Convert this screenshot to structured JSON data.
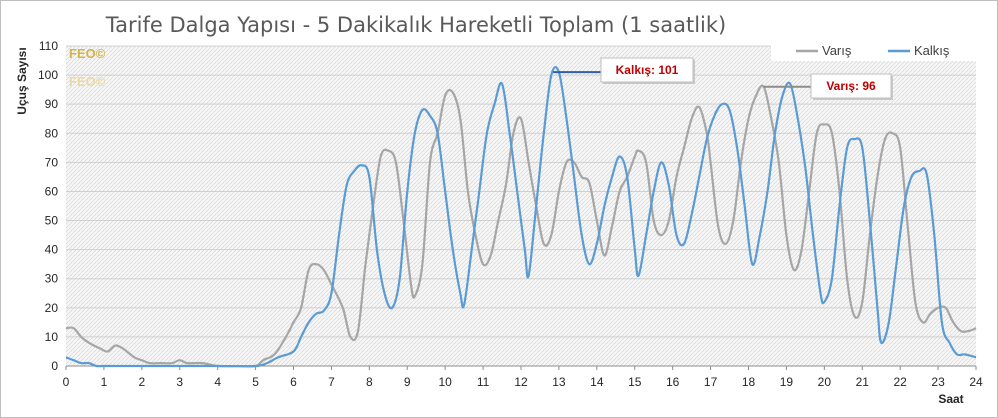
{
  "chart_data": {
    "type": "line",
    "title": "Tarife Dalga Yapısı - 5 Dakikalık Hareketli Toplam (1 saatlik)",
    "xlabel": "Saat",
    "ylabel": "Uçuş Sayısı",
    "xlim": [
      0,
      24
    ],
    "ylim": [
      0,
      110
    ],
    "x_ticks": [
      "0",
      "1",
      "2",
      "3",
      "4",
      "5",
      "6",
      "7",
      "8",
      "9",
      "10",
      "11",
      "12",
      "13",
      "14",
      "15",
      "16",
      "17",
      "18",
      "19",
      "20",
      "21",
      "22",
      "23",
      "24"
    ],
    "y_ticks": [
      "0",
      "10",
      "20",
      "30",
      "40",
      "50",
      "60",
      "70",
      "80",
      "90",
      "100",
      "110"
    ],
    "grid": "horizontal",
    "legend_position": "top-right",
    "watermark": [
      "FEO©",
      "FEO©"
    ],
    "series": [
      {
        "name": "Varış",
        "color": "#a6a6a6",
        "points": [
          [
            0,
            13
          ],
          [
            0.2,
            13
          ],
          [
            0.4,
            10
          ],
          [
            0.6,
            8
          ],
          [
            0.9,
            6
          ],
          [
            1.1,
            5
          ],
          [
            1.3,
            7
          ],
          [
            1.5,
            6
          ],
          [
            1.8,
            3
          ],
          [
            2.0,
            2
          ],
          [
            2.2,
            1
          ],
          [
            2.5,
            1
          ],
          [
            2.8,
            1
          ],
          [
            3.0,
            2
          ],
          [
            3.2,
            1
          ],
          [
            3.6,
            1
          ],
          [
            4.0,
            0
          ],
          [
            4.5,
            0
          ],
          [
            5.0,
            0
          ],
          [
            5.2,
            2
          ],
          [
            5.5,
            4
          ],
          [
            5.8,
            10
          ],
          [
            6.0,
            15
          ],
          [
            6.2,
            20
          ],
          [
            6.4,
            33
          ],
          [
            6.6,
            35
          ],
          [
            6.8,
            33
          ],
          [
            7.0,
            28
          ],
          [
            7.3,
            20
          ],
          [
            7.5,
            10
          ],
          [
            7.7,
            12
          ],
          [
            7.9,
            35
          ],
          [
            8.1,
            55
          ],
          [
            8.3,
            72
          ],
          [
            8.5,
            74
          ],
          [
            8.7,
            70
          ],
          [
            8.9,
            50
          ],
          [
            9.1,
            28
          ],
          [
            9.2,
            24
          ],
          [
            9.4,
            35
          ],
          [
            9.6,
            70
          ],
          [
            9.8,
            80
          ],
          [
            10.0,
            93
          ],
          [
            10.2,
            94
          ],
          [
            10.4,
            85
          ],
          [
            10.6,
            60
          ],
          [
            10.8,
            45
          ],
          [
            11.0,
            35
          ],
          [
            11.2,
            38
          ],
          [
            11.4,
            50
          ],
          [
            11.6,
            62
          ],
          [
            11.8,
            80
          ],
          [
            12.0,
            85
          ],
          [
            12.2,
            70
          ],
          [
            12.4,
            55
          ],
          [
            12.6,
            42
          ],
          [
            12.8,
            45
          ],
          [
            13.0,
            60
          ],
          [
            13.2,
            70
          ],
          [
            13.4,
            70
          ],
          [
            13.6,
            65
          ],
          [
            13.8,
            63
          ],
          [
            14.0,
            50
          ],
          [
            14.2,
            38
          ],
          [
            14.4,
            48
          ],
          [
            14.6,
            60
          ],
          [
            14.8,
            65
          ],
          [
            15.0,
            72
          ],
          [
            15.1,
            74
          ],
          [
            15.3,
            70
          ],
          [
            15.5,
            50
          ],
          [
            15.7,
            45
          ],
          [
            15.9,
            50
          ],
          [
            16.1,
            65
          ],
          [
            16.3,
            75
          ],
          [
            16.5,
            85
          ],
          [
            16.7,
            89
          ],
          [
            16.9,
            80
          ],
          [
            17.0,
            70
          ],
          [
            17.2,
            48
          ],
          [
            17.4,
            42
          ],
          [
            17.6,
            50
          ],
          [
            17.8,
            70
          ],
          [
            18.0,
            85
          ],
          [
            18.2,
            93
          ],
          [
            18.4,
            96
          ],
          [
            18.6,
            85
          ],
          [
            18.8,
            70
          ],
          [
            19.0,
            45
          ],
          [
            19.2,
            33
          ],
          [
            19.4,
            40
          ],
          [
            19.6,
            60
          ],
          [
            19.8,
            80
          ],
          [
            20.0,
            83
          ],
          [
            20.2,
            80
          ],
          [
            20.4,
            60
          ],
          [
            20.6,
            30
          ],
          [
            20.8,
            17
          ],
          [
            21.0,
            22
          ],
          [
            21.2,
            45
          ],
          [
            21.4,
            65
          ],
          [
            21.6,
            78
          ],
          [
            21.8,
            80
          ],
          [
            22.0,
            75
          ],
          [
            22.2,
            48
          ],
          [
            22.4,
            22
          ],
          [
            22.6,
            15
          ],
          [
            22.8,
            18
          ],
          [
            23.0,
            20
          ],
          [
            23.2,
            20
          ],
          [
            23.4,
            15
          ],
          [
            23.6,
            12
          ],
          [
            23.8,
            12
          ],
          [
            24,
            13
          ]
        ]
      },
      {
        "name": "Kalkış",
        "color": "#5b9bd5",
        "points": [
          [
            0,
            3
          ],
          [
            0.2,
            2
          ],
          [
            0.4,
            1
          ],
          [
            0.6,
            1
          ],
          [
            0.8,
            0
          ],
          [
            1.0,
            0
          ],
          [
            2.0,
            0
          ],
          [
            3.0,
            0
          ],
          [
            4.0,
            0
          ],
          [
            5.0,
            0
          ],
          [
            5.3,
            1
          ],
          [
            5.6,
            3
          ],
          [
            6.0,
            5
          ],
          [
            6.2,
            10
          ],
          [
            6.4,
            15
          ],
          [
            6.6,
            18
          ],
          [
            6.8,
            19
          ],
          [
            7.0,
            25
          ],
          [
            7.2,
            45
          ],
          [
            7.4,
            62
          ],
          [
            7.6,
            67
          ],
          [
            7.8,
            69
          ],
          [
            8.0,
            65
          ],
          [
            8.2,
            40
          ],
          [
            8.4,
            25
          ],
          [
            8.6,
            20
          ],
          [
            8.8,
            30
          ],
          [
            9.0,
            60
          ],
          [
            9.2,
            80
          ],
          [
            9.4,
            88
          ],
          [
            9.6,
            86
          ],
          [
            9.8,
            80
          ],
          [
            10.0,
            60
          ],
          [
            10.2,
            40
          ],
          [
            10.4,
            25
          ],
          [
            10.5,
            21
          ],
          [
            10.7,
            40
          ],
          [
            10.9,
            60
          ],
          [
            11.1,
            80
          ],
          [
            11.3,
            90
          ],
          [
            11.5,
            97
          ],
          [
            11.7,
            80
          ],
          [
            11.9,
            60
          ],
          [
            12.1,
            40
          ],
          [
            12.2,
            31
          ],
          [
            12.4,
            55
          ],
          [
            12.6,
            80
          ],
          [
            12.8,
            100
          ],
          [
            13.0,
            101
          ],
          [
            13.2,
            85
          ],
          [
            13.4,
            65
          ],
          [
            13.6,
            45
          ],
          [
            13.8,
            35
          ],
          [
            14.0,
            42
          ],
          [
            14.2,
            55
          ],
          [
            14.4,
            65
          ],
          [
            14.6,
            72
          ],
          [
            14.8,
            65
          ],
          [
            15.0,
            40
          ],
          [
            15.1,
            31
          ],
          [
            15.3,
            45
          ],
          [
            15.5,
            60
          ],
          [
            15.7,
            70
          ],
          [
            15.9,
            62
          ],
          [
            16.1,
            45
          ],
          [
            16.3,
            42
          ],
          [
            16.5,
            52
          ],
          [
            16.7,
            65
          ],
          [
            16.9,
            78
          ],
          [
            17.1,
            86
          ],
          [
            17.3,
            90
          ],
          [
            17.5,
            88
          ],
          [
            17.7,
            75
          ],
          [
            17.9,
            55
          ],
          [
            18.1,
            35
          ],
          [
            18.3,
            45
          ],
          [
            18.5,
            60
          ],
          [
            18.7,
            80
          ],
          [
            18.9,
            93
          ],
          [
            19.1,
            97
          ],
          [
            19.3,
            85
          ],
          [
            19.5,
            68
          ],
          [
            19.7,
            45
          ],
          [
            19.9,
            25
          ],
          [
            20.0,
            22
          ],
          [
            20.2,
            30
          ],
          [
            20.4,
            55
          ],
          [
            20.6,
            75
          ],
          [
            20.8,
            78
          ],
          [
            21.0,
            75
          ],
          [
            21.2,
            50
          ],
          [
            21.4,
            20
          ],
          [
            21.5,
            8
          ],
          [
            21.7,
            15
          ],
          [
            21.9,
            35
          ],
          [
            22.1,
            55
          ],
          [
            22.3,
            65
          ],
          [
            22.5,
            67
          ],
          [
            22.7,
            66
          ],
          [
            22.9,
            45
          ],
          [
            23.1,
            15
          ],
          [
            23.3,
            8
          ],
          [
            23.5,
            4
          ],
          [
            23.7,
            4
          ],
          [
            24,
            3
          ]
        ]
      }
    ],
    "annotations": [
      {
        "text": "Kalkış: 101",
        "series": "Kalkış",
        "x": 12.9,
        "y": 101
      },
      {
        "text": "Varış: 96",
        "series": "Varış",
        "x": 18.45,
        "y": 96
      }
    ]
  }
}
